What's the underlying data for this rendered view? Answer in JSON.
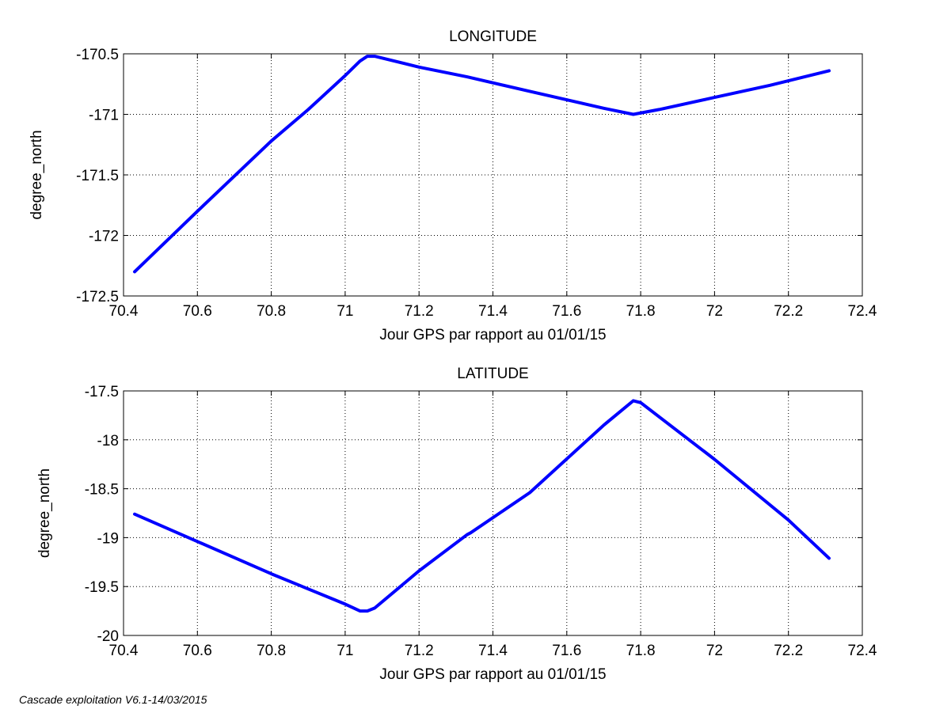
{
  "footer": "Cascade exploitation V6.1-14/03/2015",
  "chart_data": [
    {
      "type": "line",
      "title": "LONGITUDE",
      "xlabel": "Jour GPS par rapport au 01/01/15",
      "ylabel": "degree_north",
      "xlim": [
        70.4,
        72.4
      ],
      "ylim": [
        -172.5,
        -170.5
      ],
      "xticks": [
        70.4,
        70.6,
        70.8,
        71,
        71.2,
        71.4,
        71.6,
        71.8,
        72,
        72.2,
        72.4
      ],
      "xtick_labels": [
        "70.4",
        "70.6",
        "70.8",
        "71",
        "71.2",
        "71.4",
        "71.6",
        "71.8",
        "72",
        "72.2",
        "72.4"
      ],
      "yticks": [
        -170.5,
        -171,
        -171.5,
        -172,
        -172.5
      ],
      "ytick_labels": [
        "-170.5",
        "-171",
        "-171.5",
        "-172",
        "-172.5"
      ],
      "grid": true,
      "line_color": "#0000ff",
      "series": [
        {
          "x": [
            70.43,
            70.6,
            70.8,
            70.9,
            71.0,
            71.04,
            71.06,
            71.08,
            71.2,
            71.33,
            71.5,
            71.7,
            71.78,
            71.85,
            72.0,
            72.15,
            72.31
          ],
          "values": [
            -172.3,
            -171.8,
            -171.22,
            -170.96,
            -170.68,
            -170.56,
            -170.52,
            -170.52,
            -170.61,
            -170.69,
            -170.81,
            -170.95,
            -171.0,
            -170.96,
            -170.86,
            -170.76,
            -170.64
          ]
        }
      ]
    },
    {
      "type": "line",
      "title": "LATITUDE",
      "xlabel": "Jour GPS par rapport au 01/01/15",
      "ylabel": "degree_north",
      "xlim": [
        70.4,
        72.4
      ],
      "ylim": [
        -20,
        -17.5
      ],
      "xticks": [
        70.4,
        70.6,
        70.8,
        71,
        71.2,
        71.4,
        71.6,
        71.8,
        72,
        72.2,
        72.4
      ],
      "xtick_labels": [
        "70.4",
        "70.6",
        "70.8",
        "71",
        "71.2",
        "71.4",
        "71.6",
        "71.8",
        "72",
        "72.2",
        "72.4"
      ],
      "yticks": [
        -17.5,
        -18,
        -18.5,
        -19,
        -19.5,
        -20
      ],
      "ytick_labels": [
        "-17.5",
        "-18",
        "-18.5",
        "-19",
        "-19.5",
        "-20"
      ],
      "grid": true,
      "line_color": "#0000ff",
      "series": [
        {
          "x": [
            70.43,
            70.6,
            70.8,
            71.0,
            71.04,
            71.06,
            71.08,
            71.2,
            71.33,
            71.34,
            71.5,
            71.7,
            71.78,
            71.8,
            72.0,
            72.2,
            72.31
          ],
          "values": [
            -18.76,
            -19.04,
            -19.37,
            -19.68,
            -19.75,
            -19.75,
            -19.72,
            -19.34,
            -18.97,
            -18.95,
            -18.54,
            -17.85,
            -17.6,
            -17.62,
            -18.2,
            -18.82,
            -19.21
          ]
        }
      ]
    }
  ]
}
